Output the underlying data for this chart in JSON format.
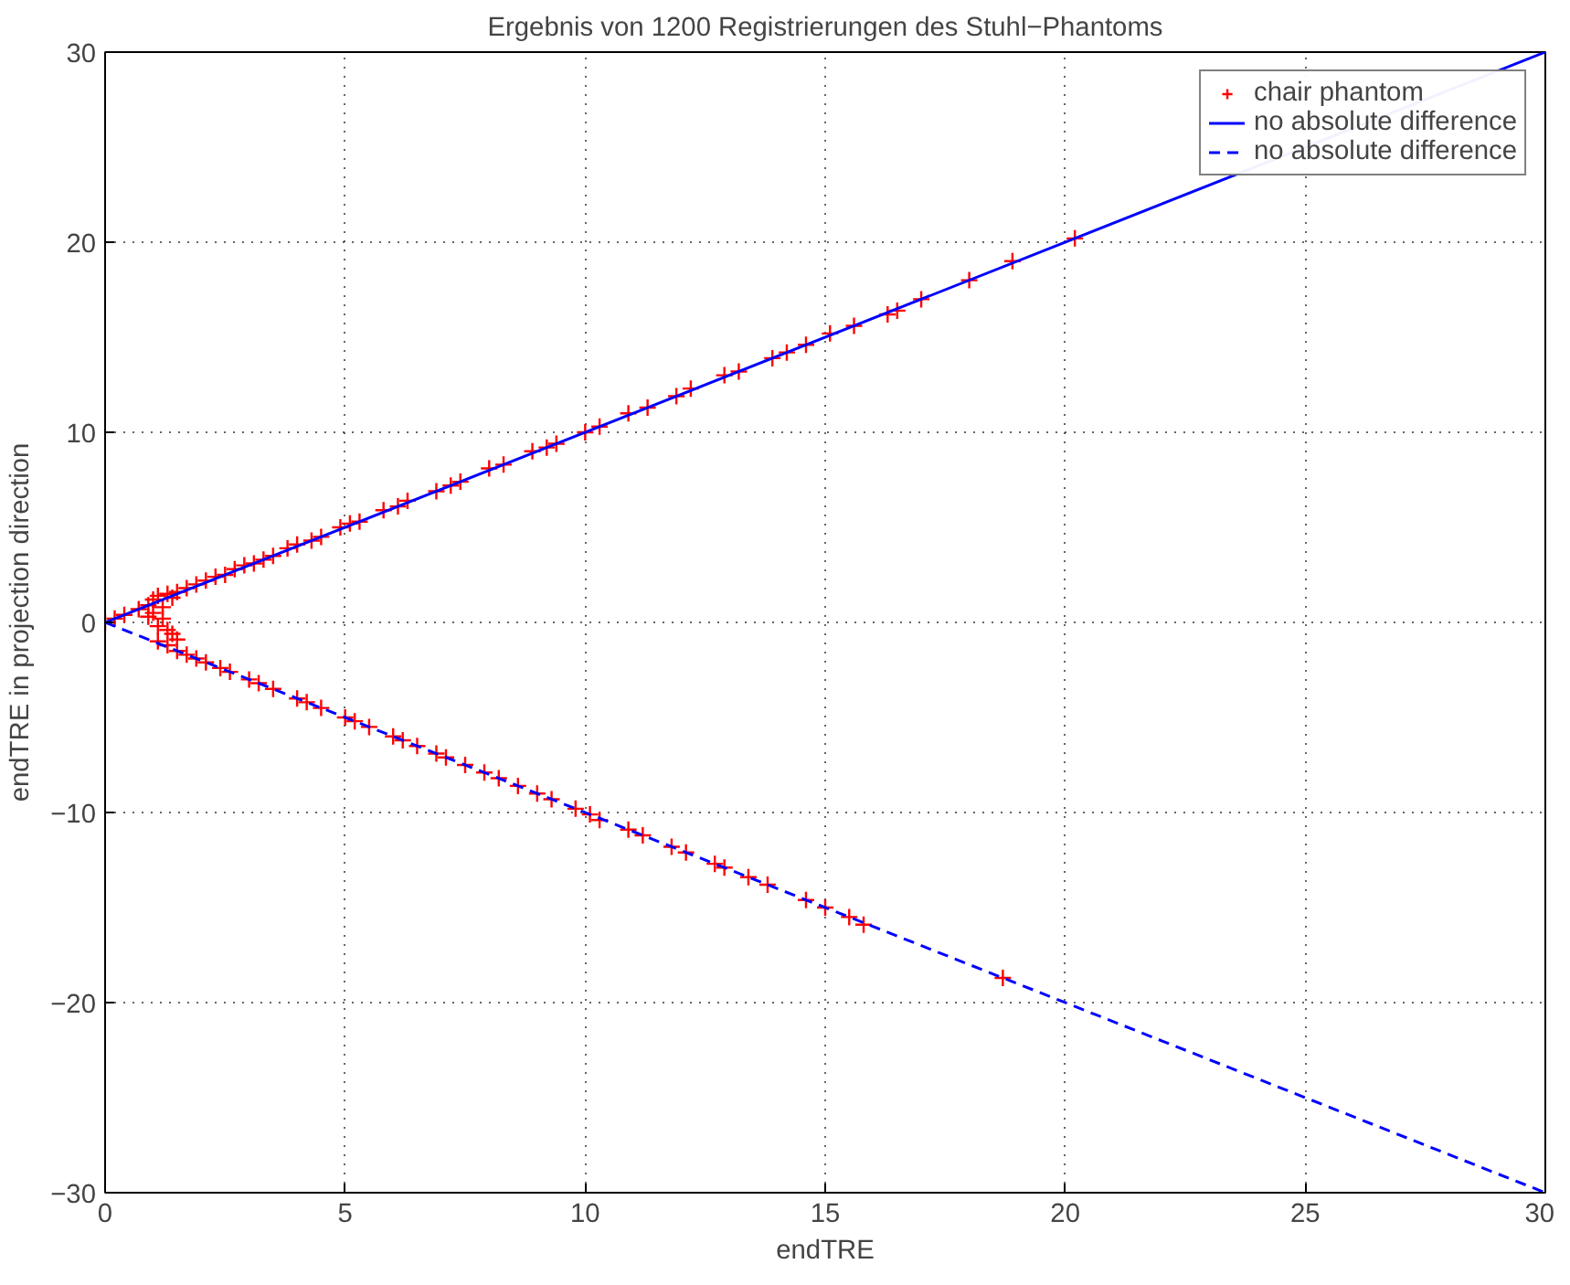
{
  "chart_data": {
    "type": "scatter",
    "title": "Ergebnis von 1200 Registrierungen des Stuhl−Phantoms",
    "xlabel": "endTRE",
    "ylabel": "endTRE in projection direction",
    "xlim": [
      0,
      30
    ],
    "ylim": [
      -30,
      30
    ],
    "xticks": [
      0,
      5,
      10,
      15,
      20,
      25,
      30
    ],
    "yticks": [
      -30,
      -20,
      -10,
      0,
      10,
      20,
      30
    ],
    "grid": true,
    "legend": "top right",
    "series": [
      {
        "name": "chair phantom",
        "marker": "cross",
        "color": "#ff0000",
        "x": [
          0.0,
          0.2,
          0.4,
          0.7,
          0.9,
          1.0,
          1.1,
          1.2,
          1.3,
          1.4,
          1.5,
          1.7,
          1.9,
          2.1,
          2.3,
          2.5,
          2.7,
          2.9,
          3.1,
          3.3,
          3.5,
          3.8,
          4.0,
          4.3,
          4.5,
          4.9,
          5.1,
          5.3,
          5.8,
          6.1,
          6.3,
          6.9,
          7.2,
          7.4,
          8.0,
          8.3,
          8.9,
          9.2,
          9.4,
          10.0,
          10.3,
          10.9,
          11.3,
          11.9,
          12.2,
          12.9,
          13.2,
          13.9,
          14.2,
          14.6,
          15.1,
          15.6,
          16.3,
          16.5,
          17.0,
          18.0,
          18.9,
          20.2,
          0.9,
          1.0,
          1.1,
          1.2,
          1.3,
          1.4,
          1.5,
          1.1,
          1.3,
          1.5,
          1.7,
          1.9,
          2.1,
          2.4,
          2.6,
          3.0,
          3.2,
          3.5,
          4.0,
          4.2,
          4.5,
          5.0,
          5.2,
          5.5,
          6.0,
          6.2,
          6.5,
          6.9,
          7.1,
          7.5,
          7.9,
          8.2,
          8.6,
          9.0,
          9.3,
          9.8,
          10.1,
          10.3,
          10.9,
          11.2,
          11.8,
          12.1,
          12.7,
          12.9,
          13.4,
          13.8,
          14.6,
          15.0,
          15.5,
          15.8,
          18.7
        ],
        "values": [
          0.0,
          0.2,
          0.4,
          0.7,
          0.9,
          1.2,
          1.4,
          0.8,
          1.5,
          1.3,
          1.6,
          1.8,
          2.0,
          2.2,
          2.4,
          2.5,
          2.8,
          3.0,
          3.1,
          3.3,
          3.5,
          3.9,
          4.1,
          4.3,
          4.5,
          5.0,
          5.2,
          5.3,
          5.9,
          6.1,
          6.4,
          6.9,
          7.2,
          7.4,
          8.1,
          8.3,
          9.0,
          9.2,
          9.4,
          10.0,
          10.3,
          11.0,
          11.3,
          11.9,
          12.3,
          13.0,
          13.2,
          13.9,
          14.2,
          14.6,
          15.2,
          15.6,
          16.2,
          16.4,
          17.0,
          18.0,
          19.0,
          20.2,
          0.3,
          0.5,
          -0.2,
          0.2,
          -0.4,
          -0.6,
          -0.9,
          -1.0,
          -1.2,
          -1.5,
          -1.7,
          -1.9,
          -2.1,
          -2.4,
          -2.6,
          -3.0,
          -3.2,
          -3.5,
          -4.0,
          -4.2,
          -4.5,
          -5.0,
          -5.2,
          -5.5,
          -6.0,
          -6.2,
          -6.5,
          -6.9,
          -7.1,
          -7.5,
          -7.9,
          -8.2,
          -8.6,
          -9.0,
          -9.3,
          -9.8,
          -10.1,
          -10.4,
          -10.9,
          -11.2,
          -11.8,
          -12.1,
          -12.7,
          -12.9,
          -13.4,
          -13.8,
          -14.6,
          -15.0,
          -15.5,
          -15.9,
          -18.7
        ]
      },
      {
        "name": "no absolute difference",
        "type": "line",
        "line_style": "solid",
        "color": "#0000ff",
        "x": [
          0,
          30
        ],
        "values": [
          0,
          30
        ]
      },
      {
        "name": "no absolute difference",
        "type": "line",
        "line_style": "dashed",
        "color": "#0000ff",
        "x": [
          0,
          30
        ],
        "values": [
          0,
          -30
        ]
      }
    ]
  }
}
